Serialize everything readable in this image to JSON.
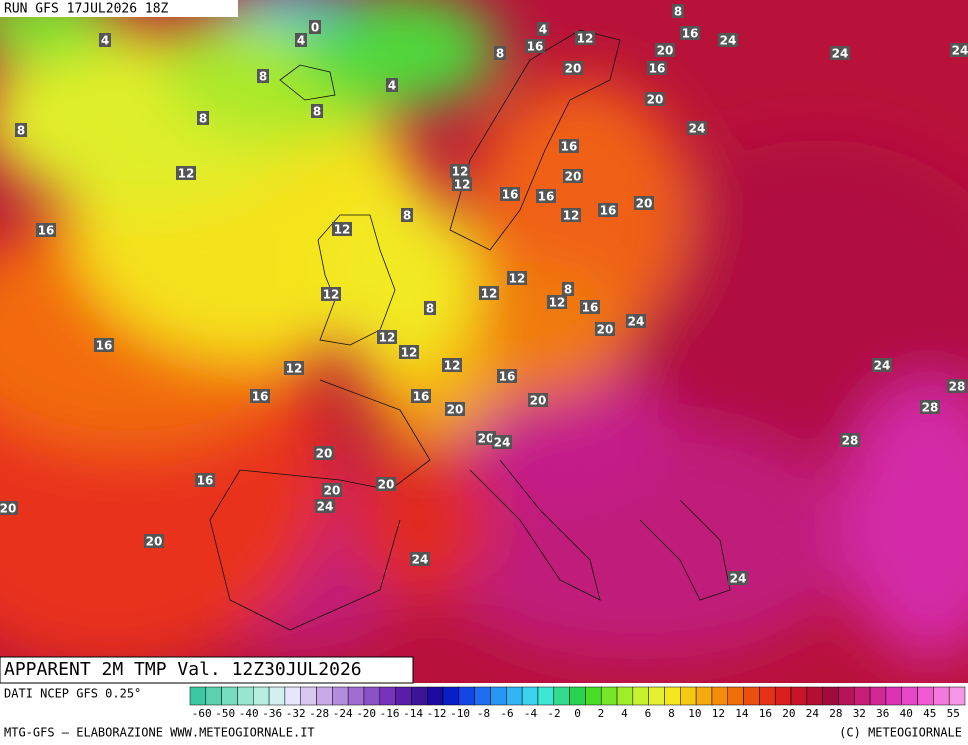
{
  "header": {
    "run": "RUN GFS 17JUL2026 18Z"
  },
  "title": "APPARENT 2M TMP Val. 12Z30JUL2026",
  "source": "DATI NCEP GFS 0.25°",
  "footer_left": "MTG-GFS — ELABORAZIONE WWW.METEOGIORNALE.IT",
  "footer_right": "(C) METEOGIORNALE",
  "legend": {
    "ticks": [
      -60,
      -50,
      -40,
      -36,
      -32,
      -28,
      -24,
      -20,
      -16,
      -14,
      -12,
      -10,
      -8,
      -6,
      -4,
      -2,
      0,
      2,
      4,
      6,
      8,
      10,
      12,
      14,
      16,
      20,
      24,
      28,
      32,
      36,
      40,
      45,
      55
    ],
    "colors": [
      "#3cc8a0",
      "#5ad2b0",
      "#78dcc0",
      "#96e6d0",
      "#b4f0e0",
      "#d2f0f0",
      "#e6e6fa",
      "#d8c8f0",
      "#c8aae6",
      "#b48cdc",
      "#a06ed2",
      "#8c50c8",
      "#7832be",
      "#5a1eaa",
      "#3c1496",
      "#1e0aa0",
      "#0a1ec8",
      "#1446e6",
      "#1e6ef0",
      "#2896f5",
      "#32b4f5",
      "#3cd2f0",
      "#3ce6d2",
      "#32dc8c",
      "#28d250",
      "#46dc28",
      "#78e628",
      "#a0ee2a",
      "#c8f230",
      "#e6f032",
      "#f5e61e",
      "#f5c814",
      "#f5aa0f",
      "#f58c0a",
      "#f06e0a",
      "#eb500f",
      "#e63214",
      "#dc1e1e",
      "#c81428",
      "#b40f32",
      "#a00a3c",
      "#b4145a",
      "#c81e78",
      "#d22896",
      "#dc32b4",
      "#e646c8",
      "#f05ad2",
      "#f578dc",
      "#f596e6"
    ]
  },
  "map_labels": [
    0,
    4,
    4,
    4,
    8,
    16,
    12,
    16,
    24,
    20,
    24,
    24,
    8,
    20,
    16,
    8,
    4,
    20,
    8,
    8,
    8,
    24,
    16,
    12,
    12,
    12,
    20,
    16,
    16,
    8,
    20,
    16,
    12,
    16,
    12,
    12,
    12,
    12,
    8,
    12,
    16,
    8,
    24,
    20,
    12,
    16,
    12,
    12,
    12,
    24,
    16,
    28,
    16,
    16,
    20,
    20,
    28,
    20,
    24,
    28,
    20,
    16,
    20,
    20,
    24,
    20,
    20,
    24,
    24
  ]
}
